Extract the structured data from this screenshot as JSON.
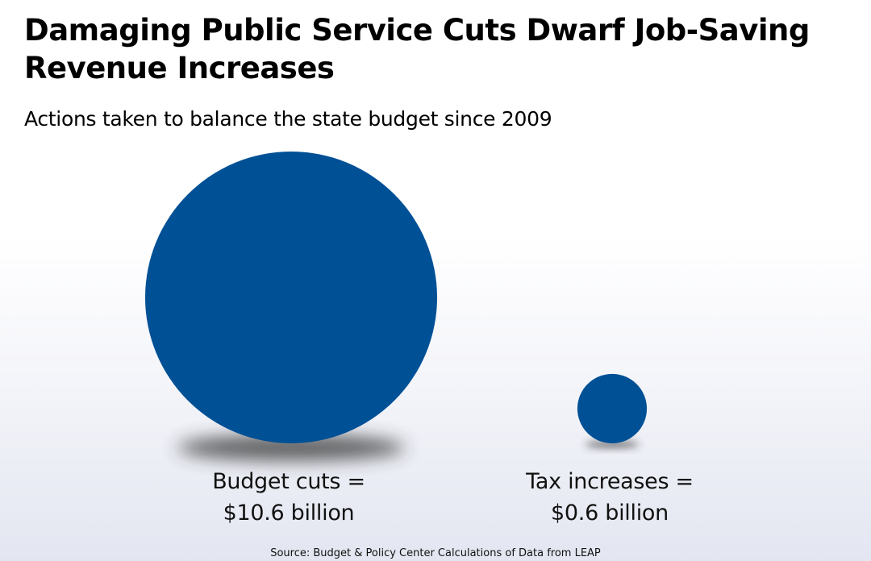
{
  "title": "Damaging Public Service Cuts Dwarf Job-Saving Revenue Increases",
  "subtitle": "Actions taken to balance the state budget since 2009",
  "source": "Source: Budget & Policy Center Calculations of Data from LEAP",
  "colors": {
    "bubble": "#005096",
    "shadow": "#333333"
  },
  "chart_data": {
    "type": "bubble",
    "title": "Damaging Public Service Cuts Dwarf Job-Saving Revenue Increases",
    "subtitle": "Actions taken to balance the state budget since 2009",
    "unit": "billion dollars",
    "items": [
      {
        "category": "Budget cuts",
        "value": 10.6,
        "label_line1": "Budget cuts =",
        "label_line2": "$10.6 billion"
      },
      {
        "category": "Tax increases",
        "value": 0.6,
        "label_line1": "Tax increases =",
        "label_line2": "$0.6 billion"
      }
    ]
  }
}
